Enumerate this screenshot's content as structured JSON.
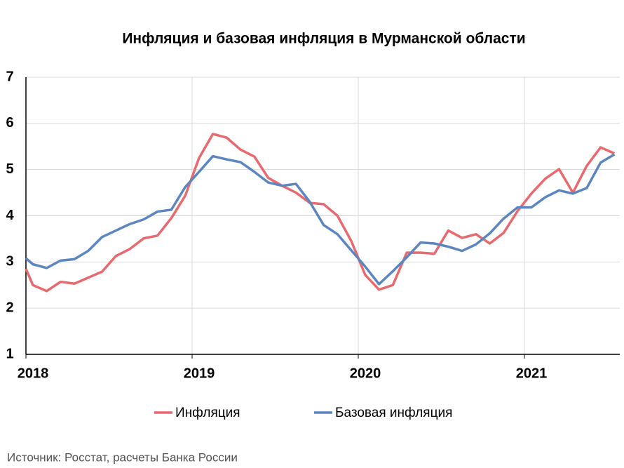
{
  "chart_data": {
    "type": "line",
    "title": "Инфляция и базовая инфляция в Мурманской области",
    "source": "Источник: Росстат, расчеты Банка России",
    "x": [
      2018,
      2018.0417,
      2018.125,
      2018.2083,
      2018.2917,
      2018.375,
      2018.4583,
      2018.5417,
      2018.625,
      2018.7083,
      2018.7917,
      2018.875,
      2018.9583,
      2019.0417,
      2019.125,
      2019.2083,
      2019.2917,
      2019.375,
      2019.4583,
      2019.5417,
      2019.625,
      2019.7083,
      2019.7917,
      2019.875,
      2019.9583,
      2020.0417,
      2020.125,
      2020.2083,
      2020.2917,
      2020.375,
      2020.4583,
      2020.5417,
      2020.625,
      2020.7083,
      2020.7917,
      2020.875,
      2020.9583,
      2021.0417,
      2021.125,
      2021.2083,
      2021.2917,
      2021.375,
      2021.4583,
      2021.5417
    ],
    "series": [
      {
        "name": "Инфляция",
        "color": "#e8696e",
        "values": [
          2.85,
          2.5,
          2.37,
          2.57,
          2.53,
          2.66,
          2.79,
          3.13,
          3.28,
          3.51,
          3.57,
          3.95,
          4.43,
          5.25,
          5.77,
          5.69,
          5.43,
          5.28,
          4.82,
          4.65,
          4.5,
          4.28,
          4.25,
          4.0,
          3.45,
          2.72,
          2.4,
          2.5,
          3.2,
          3.2,
          3.18,
          3.68,
          3.52,
          3.6,
          3.4,
          3.63,
          4.1,
          4.48,
          4.8,
          5.01,
          4.5,
          5.08,
          5.48,
          5.35
        ]
      },
      {
        "name": "Базовая инфляция",
        "color": "#5b86c0",
        "values": [
          3.08,
          2.95,
          2.87,
          3.03,
          3.06,
          3.24,
          3.54,
          3.68,
          3.82,
          3.92,
          4.09,
          4.13,
          4.62,
          4.95,
          5.29,
          5.22,
          5.16,
          4.95,
          4.72,
          4.65,
          4.69,
          4.3,
          3.8,
          3.6,
          3.25,
          2.9,
          2.52,
          2.8,
          3.1,
          3.42,
          3.4,
          3.33,
          3.24,
          3.38,
          3.62,
          3.94,
          4.18,
          4.18,
          4.4,
          4.55,
          4.48,
          4.6,
          5.15,
          5.33
        ]
      }
    ],
    "xlim": [
      2018,
      2021.574
    ],
    "xticks": [
      2018,
      2019,
      2020,
      2021
    ],
    "ylim": [
      1,
      7
    ],
    "yticks": [
      1,
      2,
      3,
      4,
      5,
      6,
      7
    ],
    "grid": true,
    "legend": "bottom"
  }
}
